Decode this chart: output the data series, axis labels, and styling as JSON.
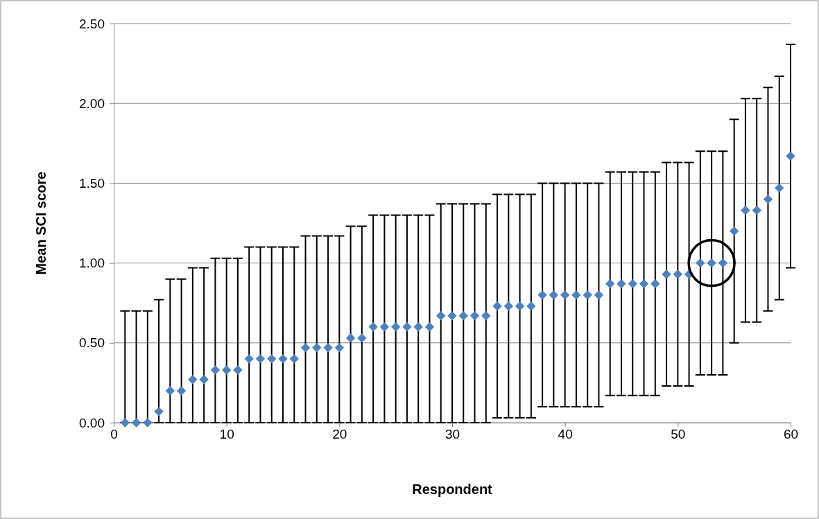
{
  "chart_data": {
    "type": "scatter",
    "xlabel": "Respondent",
    "ylabel": "Mean SCI score",
    "x": [
      1,
      2,
      3,
      4,
      5,
      6,
      7,
      8,
      9,
      10,
      11,
      12,
      13,
      14,
      15,
      16,
      17,
      18,
      19,
      20,
      21,
      22,
      23,
      24,
      25,
      26,
      27,
      28,
      29,
      30,
      31,
      32,
      33,
      34,
      35,
      36,
      37,
      38,
      39,
      40,
      41,
      42,
      43,
      44,
      45,
      46,
      47,
      48,
      49,
      50,
      51,
      52,
      53,
      54,
      55,
      56,
      57,
      58,
      59,
      60
    ],
    "series": [
      {
        "color": "#4f81bd",
        "values": [
          0,
          0,
          0,
          0.07,
          0.2,
          0.2,
          0.27,
          0.27,
          0.33,
          0.33,
          0.33,
          0.4,
          0.4,
          0.4,
          0.4,
          0.4,
          0.47,
          0.47,
          0.47,
          0.47,
          0.53,
          0.53,
          0.6,
          0.6,
          0.6,
          0.6,
          0.6,
          0.6,
          0.67,
          0.67,
          0.67,
          0.67,
          0.67,
          0.73,
          0.73,
          0.73,
          0.73,
          0.8,
          0.8,
          0.8,
          0.8,
          0.8,
          0.8,
          0.87,
          0.87,
          0.87,
          0.87,
          0.87,
          0.93,
          0.93,
          0.93,
          1.0,
          1.0,
          1.0,
          1.2,
          1.33,
          1.33,
          1.4,
          1.47,
          1.67
        ],
        "errors": [
          [
            0,
            0.7
          ],
          [
            0,
            0.7
          ],
          [
            0,
            0.7
          ],
          [
            0,
            0.77
          ],
          [
            0,
            0.9
          ],
          [
            0,
            0.9
          ],
          [
            0,
            0.97
          ],
          [
            0,
            0.97
          ],
          [
            0,
            1.03
          ],
          [
            0,
            1.03
          ],
          [
            0,
            1.03
          ],
          [
            0,
            1.1
          ],
          [
            0,
            1.1
          ],
          [
            0,
            1.1
          ],
          [
            0,
            1.1
          ],
          [
            0,
            1.1
          ],
          [
            0,
            1.17
          ],
          [
            0,
            1.17
          ],
          [
            0,
            1.17
          ],
          [
            0,
            1.17
          ],
          [
            0,
            1.23
          ],
          [
            0,
            1.23
          ],
          [
            0,
            1.3
          ],
          [
            0,
            1.3
          ],
          [
            0,
            1.3
          ],
          [
            0,
            1.3
          ],
          [
            0,
            1.3
          ],
          [
            0,
            1.3
          ],
          [
            0,
            1.37
          ],
          [
            0,
            1.37
          ],
          [
            0,
            1.37
          ],
          [
            0,
            1.37
          ],
          [
            0,
            1.37
          ],
          0.7,
          0.7,
          0.7,
          0.7,
          0.7,
          0.7,
          0.7,
          0.7,
          0.7,
          0.7,
          0.7,
          0.7,
          0.7,
          0.7,
          0.7,
          0.7,
          0.7,
          0.7,
          0.7,
          0.7,
          0.7,
          0.7,
          0.7,
          0.7,
          0.7,
          0.7,
          0.7
        ]
      }
    ],
    "xlim": [
      0,
      60
    ],
    "xticks": [
      0,
      10,
      20,
      30,
      40,
      50,
      60
    ],
    "ylim": [
      0,
      2.5
    ],
    "yticks": [
      {
        "value": 0,
        "label": "0.00"
      },
      {
        "value": 0.5,
        "label": "0.50"
      },
      {
        "value": 1,
        "label": "1.00"
      },
      {
        "value": 1.5,
        "label": "1.50"
      },
      {
        "value": 2,
        "label": "2.00"
      },
      {
        "value": 2.5,
        "label": "2.50"
      }
    ],
    "grid": "y",
    "marker": "diamond"
  }
}
